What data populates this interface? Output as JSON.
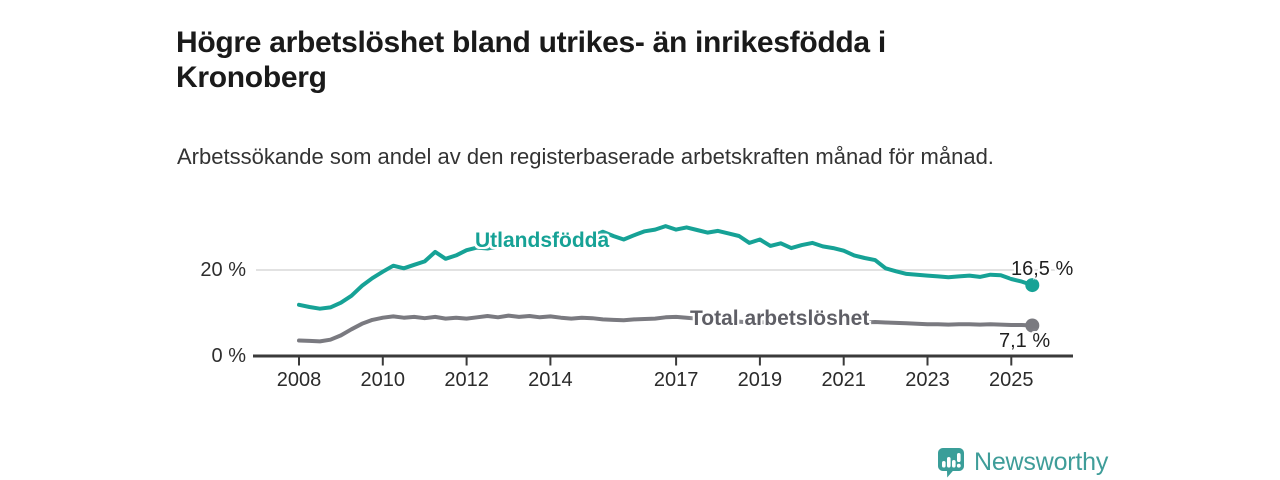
{
  "header": {
    "title": "Högre arbetslöshet bland utrikes- än inrikesfödda i Kronoberg",
    "subtitle": "Arbetssökande som andel av den registerbaserade arbetskraften månad för månad."
  },
  "branding": {
    "logo_icon": "newsworthy-speech-bubble-bar-chart-icon",
    "logo_text": "Newsworthy",
    "brand_color": "#3f9d99"
  },
  "colors": {
    "background": "#ffffff",
    "title_text": "#1a1a1a",
    "subtitle_text": "#333333",
    "axis_line": "#3a3a3a",
    "gridline": "#d8d8d8",
    "series_foreign_born": "#16a296",
    "series_total": "#7a7a80"
  },
  "chart_data": {
    "type": "line",
    "title": "Högre arbetslöshet bland utrikes- än inrikesfödda i Kronoberg",
    "subtitle": "Arbetssökande som andel av den registerbaserade arbetskraften månad för månad.",
    "xlabel": "",
    "ylabel": "",
    "unit": "%",
    "xlim": [
      2006.9,
      2026.5
    ],
    "ylim": [
      0,
      32
    ],
    "grid": "single horizontal gridline at 20 %",
    "legend_position": "inline labels on lines",
    "x_ticks": [
      2008,
      2010,
      2012,
      2014,
      2017,
      2019,
      2021,
      2023,
      2025
    ],
    "x_tick_labels": [
      "2008",
      "2010",
      "2012",
      "2014",
      "2017",
      "2019",
      "2021",
      "2023",
      "2025"
    ],
    "y_ticks": [
      {
        "value": 0,
        "label": "0 %"
      },
      {
        "value": 20,
        "label": "20 %"
      }
    ],
    "x": [
      2008,
      2008.25,
      2008.5,
      2008.75,
      2009,
      2009.25,
      2009.5,
      2009.75,
      2010,
      2010.25,
      2010.5,
      2010.75,
      2011,
      2011.25,
      2011.5,
      2011.75,
      2012,
      2012.25,
      2012.5,
      2012.75,
      2013,
      2013.25,
      2013.5,
      2013.75,
      2014,
      2014.25,
      2014.5,
      2014.75,
      2015,
      2015.25,
      2015.5,
      2015.75,
      2016,
      2016.25,
      2016.5,
      2016.75,
      2017,
      2017.25,
      2017.5,
      2017.75,
      2018,
      2018.25,
      2018.5,
      2018.75,
      2019,
      2019.25,
      2019.5,
      2019.75,
      2020,
      2020.25,
      2020.5,
      2020.75,
      2021,
      2021.25,
      2021.5,
      2021.75,
      2022,
      2022.25,
      2022.5,
      2022.75,
      2023,
      2023.25,
      2023.5,
      2023.75,
      2024,
      2024.25,
      2024.5,
      2024.75,
      2025,
      2025.25,
      2025.5
    ],
    "series": [
      {
        "name": "Utlandsfödda",
        "color": "#16a296",
        "end_label": "16,5 %",
        "end_value": 16.5,
        "values": [
          11.9,
          11.4,
          11.0,
          11.3,
          12.4,
          14.0,
          16.3,
          18.1,
          19.6,
          21.0,
          20.4,
          21.2,
          22.0,
          24.2,
          22.6,
          23.4,
          24.6,
          25.2,
          25.0,
          25.5,
          25.9,
          26.1,
          26.3,
          26.0,
          26.5,
          26.3,
          26.8,
          27.2,
          27.8,
          28.9,
          27.9,
          27.1,
          28.1,
          29.0,
          29.4,
          30.2,
          29.4,
          29.9,
          29.3,
          28.7,
          29.1,
          28.5,
          27.9,
          26.3,
          27.1,
          25.6,
          26.2,
          25.1,
          25.8,
          26.3,
          25.5,
          25.1,
          24.5,
          23.4,
          22.8,
          22.3,
          20.4,
          19.7,
          19.1,
          18.9,
          18.7,
          18.5,
          18.3,
          18.5,
          18.7,
          18.4,
          18.9,
          18.8,
          17.9,
          17.3,
          16.5
        ]
      },
      {
        "name": "Total arbetslöshet",
        "color": "#7a7a80",
        "end_label": "7,1 %",
        "end_value": 7.1,
        "values": [
          3.6,
          3.5,
          3.4,
          3.8,
          4.8,
          6.2,
          7.5,
          8.4,
          8.9,
          9.2,
          8.9,
          9.1,
          8.8,
          9.1,
          8.7,
          8.9,
          8.7,
          9.0,
          9.3,
          9.0,
          9.4,
          9.1,
          9.3,
          9.0,
          9.2,
          8.9,
          8.7,
          8.9,
          8.8,
          8.5,
          8.4,
          8.3,
          8.5,
          8.6,
          8.7,
          9.0,
          9.1,
          8.9,
          8.7,
          8.6,
          8.5,
          8.2,
          8.0,
          7.8,
          7.9,
          7.7,
          7.8,
          7.7,
          7.9,
          8.7,
          8.9,
          8.6,
          8.3,
          8.0,
          7.8,
          7.9,
          7.8,
          7.7,
          7.6,
          7.5,
          7.4,
          7.4,
          7.3,
          7.4,
          7.4,
          7.3,
          7.4,
          7.3,
          7.2,
          7.2,
          7.1
        ]
      }
    ]
  }
}
